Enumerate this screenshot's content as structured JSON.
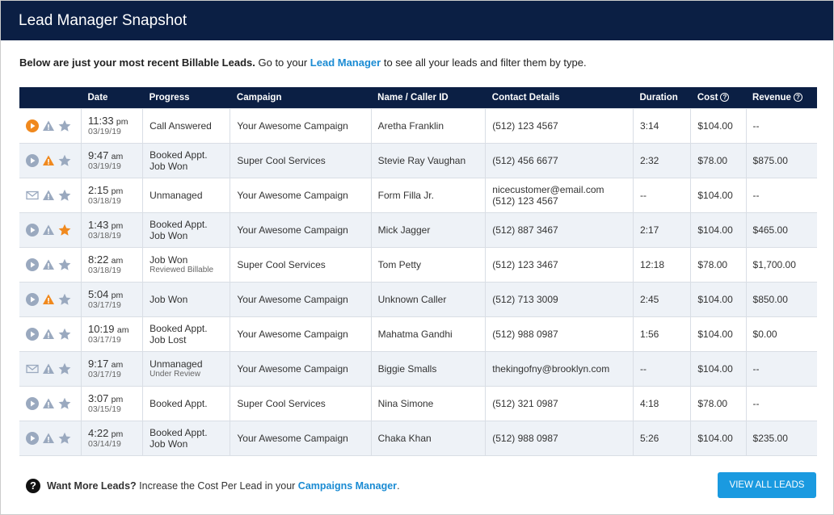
{
  "header": {
    "title": "Lead Manager Snapshot"
  },
  "intro": {
    "bold": "Below are just your most recent Billable Leads.",
    "pre": " Go to your ",
    "link": "Lead Manager",
    "post": " to see all your leads and filter them by type."
  },
  "colors": {
    "accent": "#f0891e",
    "inactive": "#9aa9bf",
    "navy": "#0b1f44",
    "link": "#1a8bd3"
  },
  "columns": [
    "",
    "Date",
    "Progress",
    "Campaign",
    "Name / Caller ID",
    "Contact Details",
    "Duration",
    "Cost",
    "Revenue"
  ],
  "help_icon": "?",
  "rows": [
    {
      "icons": [
        "play",
        "warning",
        "star"
      ],
      "active": [
        1,
        0,
        0
      ],
      "time": "11:33",
      "ampm": "pm",
      "date": "03/19/19",
      "progress": [
        "Call Answered"
      ],
      "sub": "",
      "campaign": "Your Awesome Campaign",
      "name": "Aretha Franklin",
      "contact": [
        "(512) 123 4567"
      ],
      "duration": "3:14",
      "cost": "$104.00",
      "revenue": "--"
    },
    {
      "icons": [
        "play",
        "warning",
        "star"
      ],
      "active": [
        0,
        1,
        0
      ],
      "time": "9:47",
      "ampm": "am",
      "date": "03/19/19",
      "progress": [
        "Booked Appt.",
        "Job Won"
      ],
      "sub": "",
      "campaign": "Super Cool Services",
      "name": "Stevie Ray Vaughan",
      "contact": [
        "(512) 456 6677"
      ],
      "duration": "2:32",
      "cost": "$78.00",
      "revenue": "$875.00"
    },
    {
      "icons": [
        "envelope",
        "warning",
        "star"
      ],
      "active": [
        0,
        0,
        0
      ],
      "time": "2:15",
      "ampm": "pm",
      "date": "03/18/19",
      "progress": [
        "Unmanaged"
      ],
      "sub": "",
      "campaign": "Your Awesome Campaign",
      "name": "Form Filla Jr.",
      "contact": [
        "nicecustomer@email.com",
        "(512) 123 4567"
      ],
      "duration": "--",
      "cost": "$104.00",
      "revenue": "--"
    },
    {
      "icons": [
        "play",
        "warning",
        "star"
      ],
      "active": [
        0,
        0,
        1
      ],
      "time": "1:43",
      "ampm": "pm",
      "date": "03/18/19",
      "progress": [
        "Booked Appt.",
        "Job Won"
      ],
      "sub": "",
      "campaign": "Your Awesome Campaign",
      "name": "Mick Jagger",
      "contact": [
        "(512) 887 3467"
      ],
      "duration": "2:17",
      "cost": "$104.00",
      "revenue": "$465.00"
    },
    {
      "icons": [
        "play",
        "warning",
        "star"
      ],
      "active": [
        0,
        0,
        0
      ],
      "time": "8:22",
      "ampm": "am",
      "date": "03/18/19",
      "progress": [
        "Job Won"
      ],
      "sub": "Reviewed Billable",
      "campaign": "Super Cool Services",
      "name": "Tom Petty",
      "contact": [
        "(512) 123 3467"
      ],
      "duration": "12:18",
      "cost": "$78.00",
      "revenue": "$1,700.00"
    },
    {
      "icons": [
        "play",
        "warning",
        "star"
      ],
      "active": [
        0,
        1,
        0
      ],
      "time": "5:04",
      "ampm": "pm",
      "date": "03/17/19",
      "progress": [
        "Job Won"
      ],
      "sub": "",
      "campaign": "Your Awesome Campaign",
      "name": "Unknown Caller",
      "contact": [
        "(512) 713 3009"
      ],
      "duration": "2:45",
      "cost": "$104.00",
      "revenue": "$850.00"
    },
    {
      "icons": [
        "play",
        "warning",
        "star"
      ],
      "active": [
        0,
        0,
        0
      ],
      "time": "10:19",
      "ampm": "am",
      "date": "03/17/19",
      "progress": [
        "Booked Appt.",
        "Job Lost"
      ],
      "sub": "",
      "campaign": "Your Awesome Campaign",
      "name": "Mahatma Gandhi",
      "contact": [
        "(512) 988 0987"
      ],
      "duration": "1:56",
      "cost": "$104.00",
      "revenue": "$0.00"
    },
    {
      "icons": [
        "envelope",
        "warning",
        "star"
      ],
      "active": [
        0,
        0,
        0
      ],
      "time": "9:17",
      "ampm": "am",
      "date": "03/17/19",
      "progress": [
        "Unmanaged"
      ],
      "sub": "Under Review",
      "campaign": "Your Awesome Campaign",
      "name": "Biggie Smalls",
      "contact": [
        "thekingofny@brooklyn.com"
      ],
      "duration": "--",
      "cost": "$104.00",
      "revenue": "--"
    },
    {
      "icons": [
        "play",
        "warning",
        "star"
      ],
      "active": [
        0,
        0,
        0
      ],
      "time": "3:07",
      "ampm": "pm",
      "date": "03/15/19",
      "progress": [
        "Booked Appt."
      ],
      "sub": "",
      "campaign": "Super Cool Services",
      "name": "Nina Simone",
      "contact": [
        "(512) 321 0987"
      ],
      "duration": "4:18",
      "cost": "$78.00",
      "revenue": "--"
    },
    {
      "icons": [
        "play",
        "warning",
        "star"
      ],
      "active": [
        0,
        0,
        0
      ],
      "time": "4:22",
      "ampm": "pm",
      "date": "03/14/19",
      "progress": [
        "Booked Appt.",
        "Job Won"
      ],
      "sub": "",
      "campaign": "Your Awesome Campaign",
      "name": "Chaka Khan",
      "contact": [
        "(512) 988 0987"
      ],
      "duration": "5:26",
      "cost": "$104.00",
      "revenue": "$235.00"
    }
  ],
  "footer": {
    "icon": "?",
    "bold": "Want More Leads?",
    "pre": " Increase the Cost Per Lead in your ",
    "link": "Campaigns Manager",
    "post": ".",
    "button": "VIEW ALL LEADS"
  }
}
